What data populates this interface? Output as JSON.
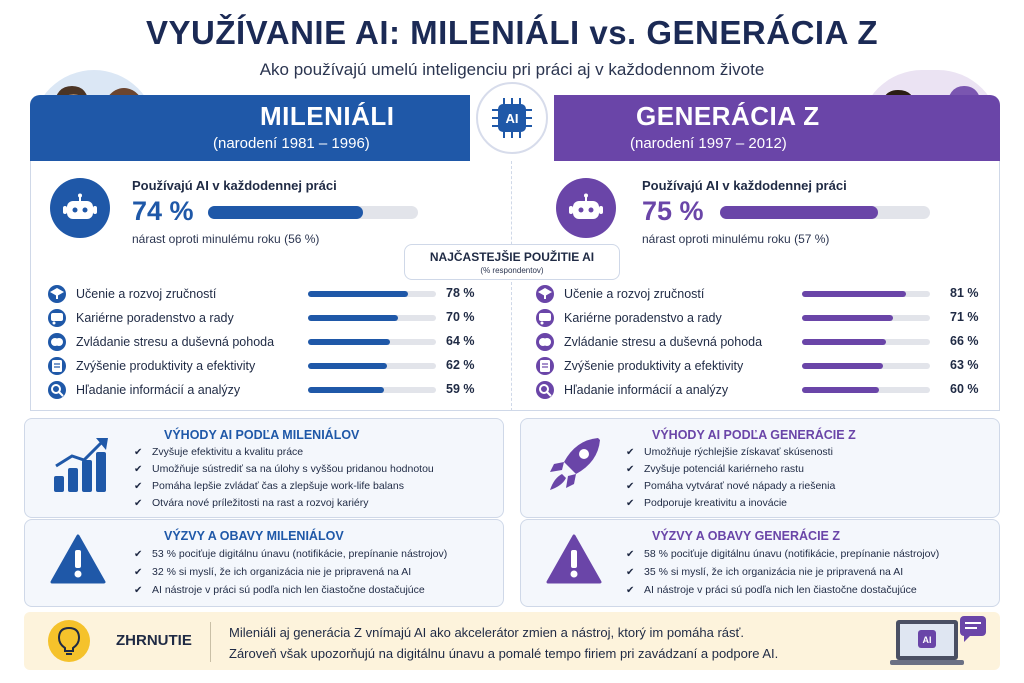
{
  "title": "VYUŽÍVANIE AI: MILENIÁLI vs. GENERÁCIA Z",
  "subtitle": "Ako používajú umelú inteligenciu pri práci aj v každodennom živote",
  "center_badge": "AI",
  "colors": {
    "millennials": "#1f58a8",
    "genz": "#6a45a8"
  },
  "millennials": {
    "heading": "MILENIÁLI",
    "years": "(narodení 1981 – 1996)",
    "stat_label": "Používajú AI v každodennej práci",
    "stat_value": "74 %",
    "stat_fraction": 0.74,
    "stat_note": "nárast oproti minulému roku (56 %)",
    "uses": [
      {
        "label": "Učenie a rozvoj zručností",
        "pct": "78 %",
        "value": 78,
        "icon": "graduation-cap-icon"
      },
      {
        "label": "Kariérne poradenstvo a rady",
        "pct": "70 %",
        "value": 70,
        "icon": "career-advice-icon"
      },
      {
        "label": "Zvládanie stresu a duševná pohoda",
        "pct": "64 %",
        "value": 64,
        "icon": "brain-icon"
      },
      {
        "label": "Zvýšenie produktivity a efektivity",
        "pct": "62 %",
        "value": 62,
        "icon": "checklist-icon"
      },
      {
        "label": "Hľadanie informácií a analýzy",
        "pct": "59 %",
        "value": 59,
        "icon": "search-icon"
      }
    ],
    "benefits_title": "VÝHODY AI PODĽA MILENIÁLOV",
    "benefits": [
      "Zvyšuje efektivitu a kvalitu práce",
      "Umožňuje sústrediť sa na úlohy s vyššou pridanou hodnotou",
      "Pomáha lepšie zvládať čas a zlepšuje work-life balans",
      "Otvára nové príležitosti na rast a rozvoj kariéry"
    ],
    "challenges_title": "VÝZVY A OBAVY MILENIÁLOV",
    "challenges": [
      "53 % pociťuje digitálnu únavu (notifikácie, prepínanie nástrojov)",
      "32 % si myslí, že ich organizácia nie je pripravená na AI",
      "AI nástroje v práci sú podľa nich len čiastočne dostačujúce"
    ]
  },
  "genz": {
    "heading": "GENERÁCIA Z",
    "years": "(narodení 1997 – 2012)",
    "stat_label": "Používajú AI v každodennej práci",
    "stat_value": "75 %",
    "stat_fraction": 0.75,
    "stat_note": "nárast oproti minulému roku (57 %)",
    "uses": [
      {
        "label": "Učenie a rozvoj zručností",
        "pct": "81 %",
        "value": 81,
        "icon": "graduation-cap-icon"
      },
      {
        "label": "Kariérne poradenstvo a rady",
        "pct": "71 %",
        "value": 71,
        "icon": "career-advice-icon"
      },
      {
        "label": "Zvládanie stresu a duševná pohoda",
        "pct": "66 %",
        "value": 66,
        "icon": "brain-icon"
      },
      {
        "label": "Zvýšenie produktivity a efektivity",
        "pct": "63 %",
        "value": 63,
        "icon": "checklist-icon"
      },
      {
        "label": "Hľadanie informácií a analýzy",
        "pct": "60 %",
        "value": 60,
        "icon": "search-icon"
      }
    ],
    "benefits_title": "VÝHODY AI PODĽA GENERÁCIE Z",
    "benefits": [
      "Umožňuje rýchlejšie získavať skúsenosti",
      "Zvyšuje potenciál kariérneho rastu",
      "Pomáha vytvárať nové nápady a riešenia",
      "Podporuje kreativitu a inovácie"
    ],
    "challenges_title": "VÝZVY A OBAVY GENERÁCIE Z",
    "challenges": [
      "58 % pociťuje digitálnu únavu (notifikácie, prepínanie nástrojov)",
      "35 % si myslí, že ich organizácia nie je pripravená na AI",
      "AI nástroje v práci sú podľa nich len čiastočne dostačujúce"
    ]
  },
  "usage_header": {
    "title": "NAJČASTEJŠIE POUŽITIE AI",
    "note": "(% respondentov)"
  },
  "summary": {
    "title": "ZHRNUTIE",
    "lines": [
      "Mileniáli aj generácia Z vnímajú AI ako akcelerátor zmien a nástroj, ktorý im pomáha rásť.",
      "Zároveň však upozorňujú na digitálnu únavu a pomalé tempo firiem pri zavádzaní a podpore AI."
    ],
    "laptop_badge": "AI"
  }
}
